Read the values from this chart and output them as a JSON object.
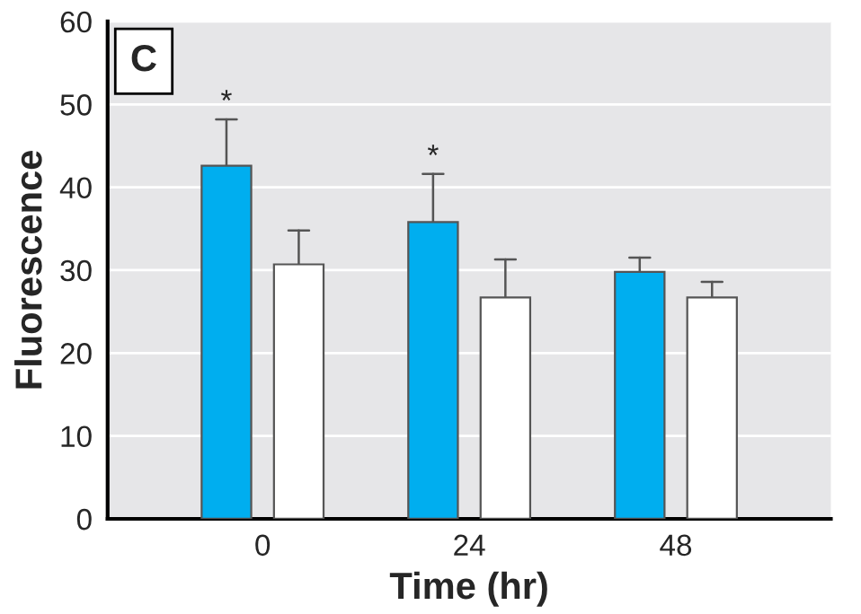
{
  "chart_data": {
    "type": "bar",
    "xlabel": "Time (hr)",
    "ylabel": "Fluorescence",
    "categories": [
      "0",
      "24",
      "48"
    ],
    "series": [
      {
        "color": "#00aeef",
        "values": [
          42.6,
          35.8,
          29.8
        ],
        "errors": [
          [
            42.6,
            48.2
          ],
          [
            35.8,
            41.6
          ],
          [
            29.8,
            31.5
          ]
        ],
        "value_labels": [
          "*",
          "*",
          null
        ]
      },
      {
        "color": "#ffffff",
        "values": [
          30.7,
          26.7,
          26.7
        ],
        "errors": [
          [
            30.7,
            34.8
          ],
          [
            26.7,
            31.3
          ],
          [
            26.7,
            28.6
          ]
        ]
      }
    ],
    "ylim": [
      0,
      60
    ],
    "yticks": [
      0,
      10,
      20,
      30,
      40,
      50,
      60
    ],
    "grid": "y",
    "legend": false,
    "annotations": [
      "C"
    ]
  }
}
